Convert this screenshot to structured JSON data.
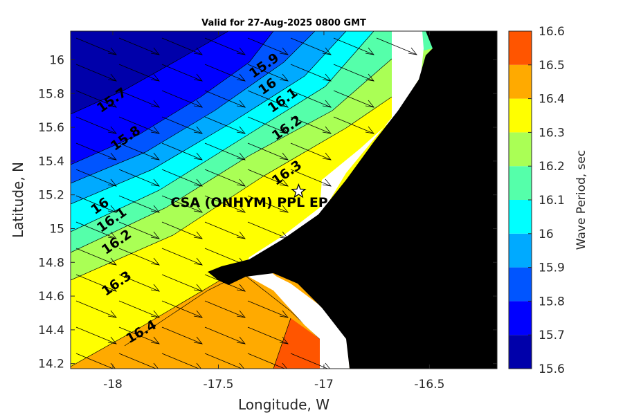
{
  "chart_data": {
    "type": "heatmap",
    "title": "Valid for 27-Aug-2025 0800 GMT",
    "xlabel": "Longitude, W",
    "ylabel": "Latitude, N",
    "xlim": [
      -18.2,
      -16.18
    ],
    "ylim": [
      14.17,
      16.17
    ],
    "xticks": [
      -18,
      -17.5,
      -17,
      -16.5
    ],
    "yticks": [
      14.2,
      14.4,
      14.6,
      14.8,
      15,
      15.2,
      15.4,
      15.6,
      15.8,
      16
    ],
    "colorbar": {
      "label": "Wave Period, sec",
      "levels": [
        15.6,
        15.7,
        15.8,
        15.9,
        16,
        16.1,
        16.2,
        16.3,
        16.4,
        16.5,
        16.6
      ],
      "colors": [
        "#0000aa",
        "#0000ff",
        "#0055ff",
        "#00aaff",
        "#00ffff",
        "#55ffaa",
        "#aaff55",
        "#ffff00",
        "#ffaa00",
        "#ff5500"
      ]
    },
    "contour_labels": [
      "15.7",
      "15.8",
      "15.9",
      "16",
      "16.1",
      "16.2",
      "16.3",
      "16",
      "16.1",
      "16.2",
      "16.3",
      "16.4"
    ],
    "site": {
      "name": "CSA (ONHYM) PPL EP",
      "lon": -17.12,
      "lat": 15.22
    },
    "wave_direction": "toward southeast",
    "land_color": "#000000"
  }
}
